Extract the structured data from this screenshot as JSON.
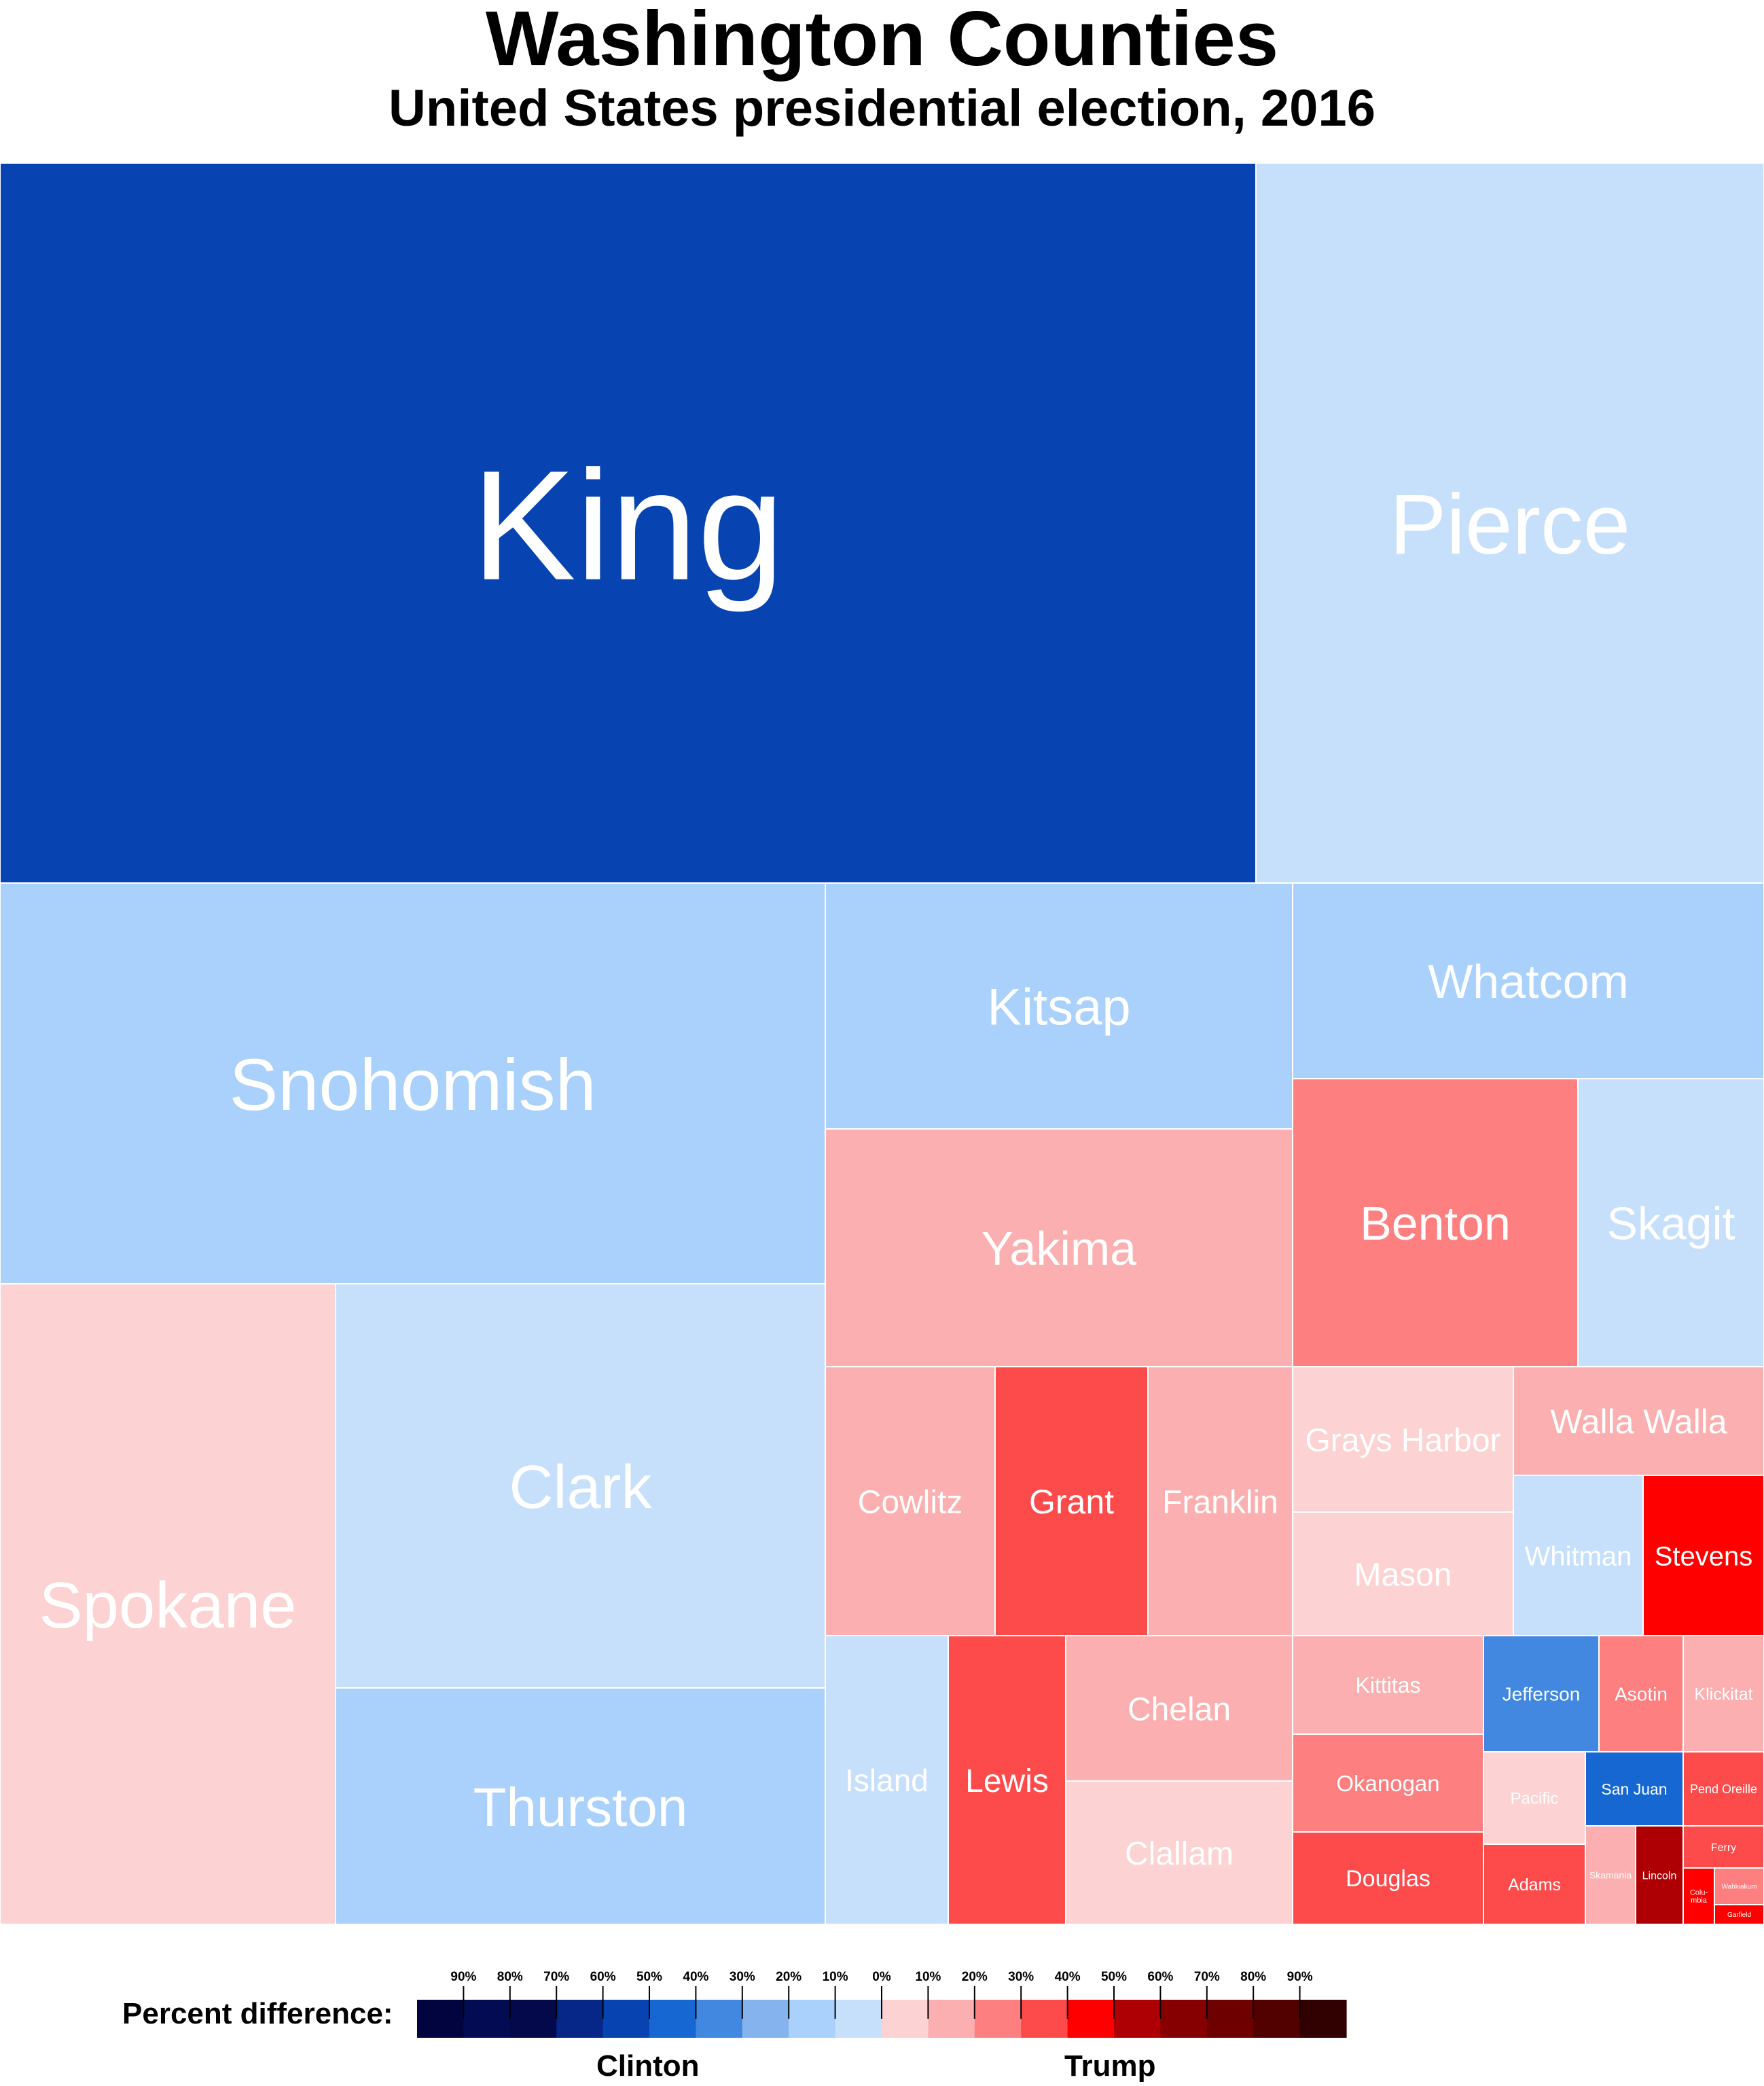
{
  "chart_data": {
    "type": "treemap",
    "title": "Washington Counties",
    "subtitle": "United States presidential election, 2016",
    "colors": {
      "clinton_scale": [
        "#c6dffb",
        "#a9d1fb",
        "#85b3ee",
        "#4287e0",
        "#1667d1",
        "#0844b1",
        "#062688",
        "#030c52",
        "#020440"
      ],
      "trump_scale": [
        "#fdd2d3",
        "#fcafb0",
        "#fe7f80",
        "#fd4b4c",
        "#ff0000",
        "#ae0004",
        "#870001",
        "#6e0000",
        "#520000",
        "#310000"
      ]
    },
    "counties": [
      {
        "name": "King",
        "winner": "Clinton",
        "bin": 6,
        "color": "#0844b1"
      },
      {
        "name": "Pierce",
        "winner": "Clinton",
        "bin": 1,
        "color": "#c6dffb"
      },
      {
        "name": "Snohomish",
        "winner": "Clinton",
        "bin": 2,
        "color": "#a9d1fb"
      },
      {
        "name": "Kitsap",
        "winner": "Clinton",
        "bin": 2,
        "color": "#a9d1fb"
      },
      {
        "name": "Whatcom",
        "winner": "Clinton",
        "bin": 2,
        "color": "#a9d1fb"
      },
      {
        "name": "Yakima",
        "winner": "Trump",
        "bin": 2,
        "color": "#fcafb0"
      },
      {
        "name": "Benton",
        "winner": "Trump",
        "bin": 3,
        "color": "#fe7f80"
      },
      {
        "name": "Skagit",
        "winner": "Clinton",
        "bin": 1,
        "color": "#c6dffb"
      },
      {
        "name": "Spokane",
        "winner": "Trump",
        "bin": 1,
        "color": "#fdd2d3"
      },
      {
        "name": "Clark",
        "winner": "Clinton",
        "bin": 1,
        "color": "#c6dffb"
      },
      {
        "name": "Thurston",
        "winner": "Clinton",
        "bin": 2,
        "color": "#a9d1fb"
      },
      {
        "name": "Cowlitz",
        "winner": "Trump",
        "bin": 2,
        "color": "#fcafb0"
      },
      {
        "name": "Grant",
        "winner": "Trump",
        "bin": 4,
        "color": "#fd4b4c"
      },
      {
        "name": "Franklin",
        "winner": "Trump",
        "bin": 2,
        "color": "#fcafb0"
      },
      {
        "name": "Grays Harbor",
        "winner": "Trump",
        "bin": 1,
        "color": "#fdd2d3"
      },
      {
        "name": "Walla Walla",
        "winner": "Trump",
        "bin": 2,
        "color": "#fcafb0"
      },
      {
        "name": "Mason",
        "winner": "Trump",
        "bin": 1,
        "color": "#fdd2d3"
      },
      {
        "name": "Whitman",
        "winner": "Clinton",
        "bin": 1,
        "color": "#c6dffb"
      },
      {
        "name": "Stevens",
        "winner": "Trump",
        "bin": 5,
        "color": "#ff0000"
      },
      {
        "name": "Island",
        "winner": "Clinton",
        "bin": 1,
        "color": "#c6dffb"
      },
      {
        "name": "Lewis",
        "winner": "Trump",
        "bin": 4,
        "color": "#fd4b4c"
      },
      {
        "name": "Chelan",
        "winner": "Trump",
        "bin": 2,
        "color": "#fcafb0"
      },
      {
        "name": "Clallam",
        "winner": "Trump",
        "bin": 1,
        "color": "#fdd2d3"
      },
      {
        "name": "Kittitas",
        "winner": "Trump",
        "bin": 2,
        "color": "#fcafb0"
      },
      {
        "name": "Okanogan",
        "winner": "Trump",
        "bin": 3,
        "color": "#fe7f80"
      },
      {
        "name": "Douglas",
        "winner": "Trump",
        "bin": 4,
        "color": "#fd4b4c"
      },
      {
        "name": "Jefferson",
        "winner": "Clinton",
        "bin": 4,
        "color": "#4287e0"
      },
      {
        "name": "Asotin",
        "winner": "Trump",
        "bin": 3,
        "color": "#fe7f80"
      },
      {
        "name": "Klickitat",
        "winner": "Trump",
        "bin": 2,
        "color": "#fcafb0"
      },
      {
        "name": "Pacific",
        "winner": "Trump",
        "bin": 1,
        "color": "#fdd2d3"
      },
      {
        "name": "San Juan",
        "winner": "Clinton",
        "bin": 5,
        "color": "#1667d1"
      },
      {
        "name": "Pend Oreille",
        "winner": "Trump",
        "bin": 4,
        "color": "#fd4b4c"
      },
      {
        "name": "Adams",
        "winner": "Trump",
        "bin": 4,
        "color": "#fd4b4c"
      },
      {
        "name": "Skamania",
        "winner": "Trump",
        "bin": 2,
        "color": "#fcafb0"
      },
      {
        "name": "Lincoln",
        "winner": "Trump",
        "bin": 6,
        "color": "#ae0004"
      },
      {
        "name": "Ferry",
        "winner": "Trump",
        "bin": 4,
        "color": "#fd4b4c"
      },
      {
        "name": "Columbia",
        "label": "Colu-\nmbia",
        "winner": "Trump",
        "bin": 5,
        "color": "#ff0000"
      },
      {
        "name": "Wahkiakum",
        "winner": "Trump",
        "bin": 3,
        "color": "#fe7f80"
      },
      {
        "name": "Garfield",
        "winner": "Trump",
        "bin": 5,
        "color": "#ff0000"
      }
    ],
    "legend": {
      "label": "Percent difference:",
      "clinton_label": "Clinton",
      "trump_label": "Trump",
      "clinton_ticks": [
        "90%",
        "80%",
        "70%",
        "60%",
        "50%",
        "40%",
        "30%",
        "20%",
        "10%"
      ],
      "zero_tick": "0%",
      "trump_ticks": [
        "10%",
        "20%",
        "30%",
        "40%",
        "50%",
        "60%",
        "70%",
        "80%",
        "90%"
      ],
      "clinton_swatches": [
        "#020440",
        "#030c52",
        "#03094a",
        "#062688",
        "#0844b1",
        "#1667d1",
        "#4287e0",
        "#85b3ee",
        "#a9d1fb",
        "#c6dffb"
      ],
      "trump_swatches": [
        "#fdd2d3",
        "#fcafb0",
        "#fe7f80",
        "#fd4b4c",
        "#ff0000",
        "#ae0004",
        "#870001",
        "#6e0000",
        "#520000",
        "#310000"
      ]
    }
  }
}
